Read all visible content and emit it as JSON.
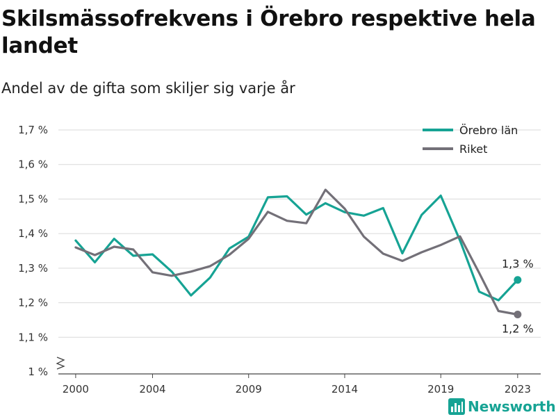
{
  "title": "Skilsmässofrekvens i Örebro respektive hela landet",
  "subtitle": "Andel av de gifta som skiljer sig varje år",
  "brand": "Newsworthy",
  "colors": {
    "orebro": "#16a394",
    "riket": "#737078",
    "grid": "#d9d9d9",
    "brand": "#16a394"
  },
  "chart_data": {
    "type": "line",
    "ylim": [
      1.0,
      1.7
    ],
    "y_ticks": [
      {
        "value": 1.0,
        "label": "1 %"
      },
      {
        "value": 1.1,
        "label": "1,1 %"
      },
      {
        "value": 1.2,
        "label": "1,2 %"
      },
      {
        "value": 1.3,
        "label": "1,3 %"
      },
      {
        "value": 1.4,
        "label": "1,4 %"
      },
      {
        "value": 1.5,
        "label": "1,5 %"
      },
      {
        "value": 1.6,
        "label": "1,6 %"
      },
      {
        "value": 1.7,
        "label": "1,7 %"
      }
    ],
    "x_ticks": [
      2000,
      2004,
      2009,
      2014,
      2019,
      2023
    ],
    "xlim": [
      1999.1,
      2024.2
    ],
    "grid": true,
    "y_axis_break": true,
    "legend_position": "top-right",
    "x": [
      2000,
      2001,
      2002,
      2003,
      2004,
      2005,
      2006,
      2007,
      2008,
      2009,
      2010,
      2011,
      2012,
      2013,
      2014,
      2015,
      2016,
      2017,
      2018,
      2019,
      2020,
      2021,
      2022,
      2023
    ],
    "series": [
      {
        "name": "Örebro län",
        "color": "#16a394",
        "values": [
          1.38,
          1.317,
          1.385,
          1.336,
          1.34,
          1.29,
          1.221,
          1.273,
          1.357,
          1.391,
          1.505,
          1.508,
          1.455,
          1.488,
          1.462,
          1.452,
          1.474,
          1.343,
          1.454,
          1.51,
          1.38,
          1.232,
          1.207,
          1.266
        ],
        "end_label": "1,3 %"
      },
      {
        "name": "Riket",
        "color": "#737078",
        "values": [
          1.36,
          1.338,
          1.362,
          1.354,
          1.288,
          1.278,
          1.29,
          1.306,
          1.339,
          1.385,
          1.463,
          1.437,
          1.43,
          1.527,
          1.472,
          1.391,
          1.342,
          1.321,
          1.346,
          1.367,
          1.392,
          1.286,
          1.176,
          1.166
        ],
        "end_label": "1,2 %"
      }
    ]
  }
}
